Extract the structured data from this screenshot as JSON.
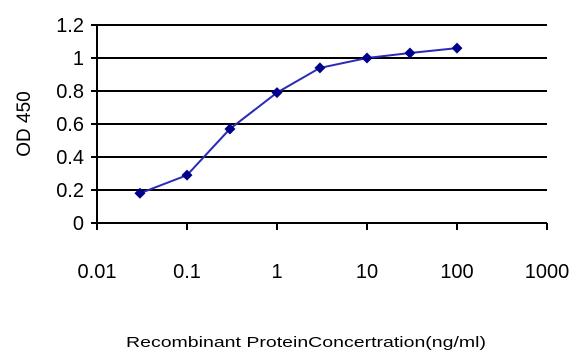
{
  "chart_data": {
    "type": "line",
    "title": "",
    "xlabel": "Recombinant ProteinConcertration(ng/ml)",
    "ylabel": "OD 450",
    "x_scale": "log",
    "xlim": [
      0.01,
      1000
    ],
    "ylim": [
      0,
      1.2
    ],
    "x_ticks": [
      "0.01",
      "0.1",
      "1",
      "10",
      "100",
      "1000"
    ],
    "y_ticks": [
      "0",
      "0.2",
      "0.4",
      "0.6",
      "0.8",
      "1",
      "1.2"
    ],
    "grid": "horizontal",
    "legend": "none",
    "series": [
      {
        "x": [
          0.03,
          0.1,
          0.3,
          1,
          3,
          10,
          30,
          100
        ],
        "y": [
          0.18,
          0.29,
          0.57,
          0.79,
          0.94,
          1.0,
          1.03,
          1.06
        ]
      }
    ],
    "colors": {
      "line": "#2b2bb5",
      "marker": "#00008b",
      "grid": "#000000",
      "plot_background": "#ffffff"
    }
  }
}
